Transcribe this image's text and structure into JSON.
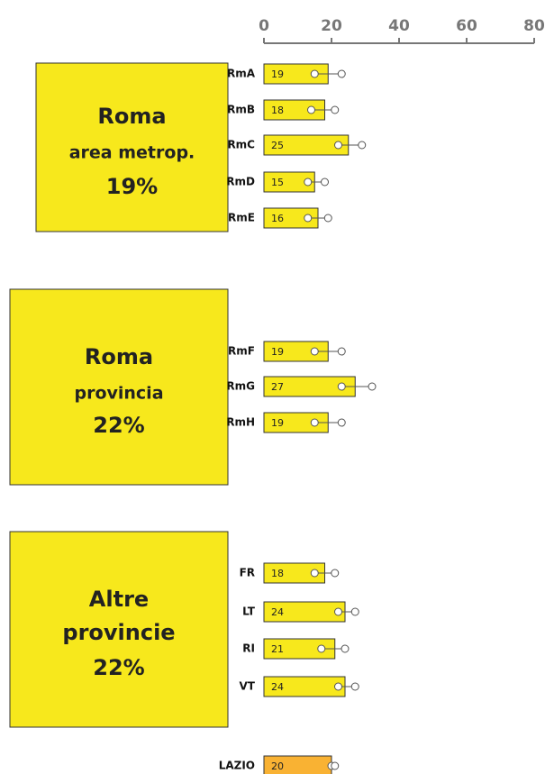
{
  "chart_data": {
    "type": "bar",
    "xlim": [
      0,
      80
    ],
    "xticks": [
      0,
      20,
      40,
      60,
      80
    ],
    "color": "#f7e81c",
    "total_color": "#f9b233",
    "groups": [
      {
        "title": "Roma",
        "subtitle": "area metrop.",
        "share": "19%",
        "categories": [
          "RmA",
          "RmB",
          "RmC",
          "RmD",
          "RmE"
        ],
        "values": [
          19,
          18,
          25,
          15,
          16
        ],
        "ci_low": [
          15,
          14,
          22,
          13,
          13
        ],
        "ci_high": [
          23,
          21,
          29,
          18,
          19
        ]
      },
      {
        "title": "Roma",
        "subtitle": "provincia",
        "share": "22%",
        "categories": [
          "RmF",
          "RmG",
          "RmH"
        ],
        "values": [
          19,
          27,
          19
        ],
        "ci_low": [
          15,
          23,
          15
        ],
        "ci_high": [
          23,
          32,
          23
        ]
      },
      {
        "title": "Altre",
        "subtitle": "provincie",
        "share": "22%",
        "categories": [
          "FR",
          "LT",
          "RI",
          "VT"
        ],
        "values": [
          18,
          24,
          21,
          24
        ],
        "ci_low": [
          15,
          22,
          17,
          22
        ],
        "ci_high": [
          21,
          27,
          24,
          27
        ]
      }
    ],
    "total": {
      "category": "LAZIO",
      "value": 20,
      "ci_low": 20,
      "ci_high": 21
    }
  }
}
